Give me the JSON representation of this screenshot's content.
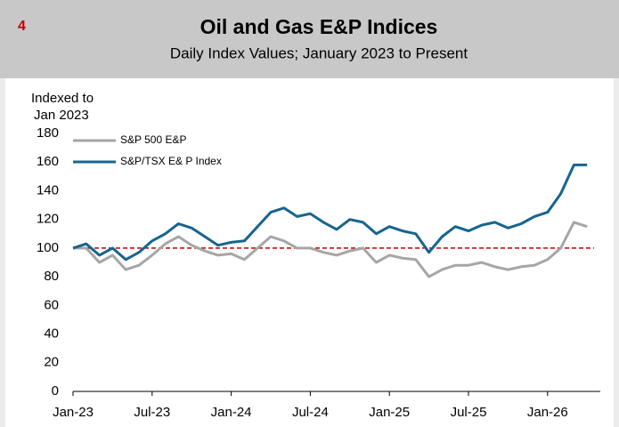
{
  "chart_data": {
    "type": "line",
    "panel_number": "4",
    "title": "Oil and Gas E&P Indices",
    "subtitle": "Daily Index Values; January 2023 to Present",
    "y_label": [
      "Indexed to",
      "Jan 2023"
    ],
    "x": [
      "2023-01",
      "2023-02",
      "2023-03",
      "2023-04",
      "2023-05",
      "2023-06",
      "2023-07",
      "2023-08",
      "2023-09",
      "2023-10",
      "2023-11",
      "2023-12",
      "2024-01",
      "2024-02",
      "2024-03",
      "2024-04",
      "2024-05",
      "2024-06",
      "2024-07",
      "2024-08",
      "2024-09",
      "2024-10",
      "2024-11",
      "2024-12",
      "2025-01",
      "2025-02",
      "2025-03",
      "2025-04",
      "2025-05",
      "2025-06",
      "2025-07",
      "2025-08",
      "2025-09",
      "2025-10",
      "2025-11",
      "2025-12",
      "2026-01",
      "2026-02",
      "2026-03",
      "2026-04"
    ],
    "series": [
      {
        "name": "S&P 500 E&P",
        "color": "#a6a6a6",
        "values": [
          100,
          100,
          90,
          95,
          85,
          88,
          95,
          103,
          108,
          102,
          98,
          95,
          96,
          92,
          100,
          108,
          105,
          100,
          100,
          97,
          95,
          98,
          100,
          90,
          95,
          93,
          92,
          80,
          85,
          88,
          88,
          90,
          87,
          85,
          87,
          88,
          92,
          100,
          118,
          115
        ]
      },
      {
        "name": "S&P/TSX E& P Index",
        "color": "#17648f",
        "values": [
          100,
          103,
          95,
          100,
          92,
          97,
          105,
          110,
          117,
          114,
          108,
          102,
          104,
          105,
          115,
          125,
          128,
          122,
          124,
          118,
          113,
          120,
          118,
          110,
          115,
          112,
          110,
          97,
          108,
          115,
          112,
          116,
          118,
          114,
          117,
          122,
          125,
          138,
          158,
          158
        ]
      }
    ],
    "reference_line": {
      "value": 100,
      "color": "#c00000"
    },
    "xlim": [
      "2023-01",
      "2026-05"
    ],
    "xticks": [
      {
        "value": "2023-01",
        "label": "Jan-23"
      },
      {
        "value": "2023-07",
        "label": "Jul-23"
      },
      {
        "value": "2024-01",
        "label": "Jan-24"
      },
      {
        "value": "2024-07",
        "label": "Jul-24"
      },
      {
        "value": "2025-01",
        "label": "Jan-25"
      },
      {
        "value": "2025-07",
        "label": "Jul-25"
      },
      {
        "value": "2026-01",
        "label": "Jan-26"
      }
    ],
    "ylim": [
      0,
      180
    ],
    "yticks": [
      0,
      20,
      40,
      60,
      80,
      100,
      120,
      140,
      160,
      180
    ],
    "grid": false,
    "legend": "top-left"
  }
}
